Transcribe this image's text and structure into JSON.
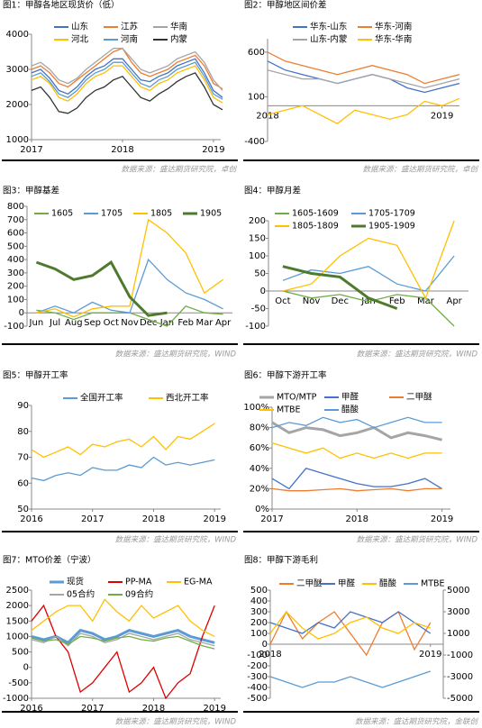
{
  "chart_data": [
    {
      "type": "line",
      "title": "图1：甲醇各地区现货价（低）",
      "source": "数据来源：盛达期货研究院，卓创",
      "x": [
        2017.0,
        2017.1,
        2017.2,
        2017.3,
        2017.4,
        2017.5,
        2017.6,
        2017.7,
        2017.8,
        2017.9,
        2018.0,
        2018.1,
        2018.2,
        2018.3,
        2018.4,
        2018.5,
        2018.6,
        2018.7,
        2018.8,
        2018.9,
        2019.0,
        2019.1
      ],
      "xlim": [
        2017,
        2019.08
      ],
      "xticks": [
        2017,
        2018,
        2019
      ],
      "ylim": [
        1000,
        4000
      ],
      "yticks": [
        1000,
        2000,
        3000,
        4000
      ],
      "series": [
        {
          "name": "山东",
          "color": "#4472c4",
          "values": [
            2900,
            3000,
            2750,
            2400,
            2300,
            2500,
            2800,
            3000,
            3100,
            3300,
            3300,
            3000,
            2700,
            2650,
            2800,
            2900,
            3100,
            3200,
            3300,
            2900,
            2400,
            2200
          ]
        },
        {
          "name": "江苏",
          "color": "#ed7d31",
          "values": [
            3000,
            3100,
            2900,
            2600,
            2500,
            2700,
            2900,
            3100,
            3300,
            3500,
            3600,
            3200,
            2900,
            2800,
            2900,
            3000,
            3200,
            3300,
            3400,
            3100,
            2600,
            2450
          ]
        },
        {
          "name": "华南",
          "color": "#a5a5a5",
          "values": [
            3100,
            3200,
            3000,
            2700,
            2600,
            2750,
            3000,
            3200,
            3400,
            3600,
            3600,
            3300,
            3000,
            2900,
            3000,
            3100,
            3300,
            3400,
            3500,
            3200,
            2700,
            2400
          ]
        },
        {
          "name": "河北",
          "color": "#ffc000",
          "values": [
            2700,
            2800,
            2600,
            2200,
            2100,
            2300,
            2600,
            2800,
            2900,
            3100,
            3100,
            2800,
            2500,
            2400,
            2600,
            2700,
            2900,
            3000,
            3100,
            2700,
            2200,
            2050
          ]
        },
        {
          "name": "河南",
          "color": "#5b9bd5",
          "values": [
            2800,
            2900,
            2650,
            2300,
            2200,
            2400,
            2700,
            2900,
            3000,
            3200,
            3200,
            2900,
            2600,
            2500,
            2700,
            2800,
            3000,
            3100,
            3200,
            2800,
            2300,
            2150
          ]
        },
        {
          "name": "内蒙",
          "color": "#333333",
          "values": [
            2400,
            2500,
            2200,
            1800,
            1750,
            1900,
            2200,
            2400,
            2500,
            2700,
            2800,
            2500,
            2200,
            2100,
            2300,
            2450,
            2650,
            2800,
            2900,
            2500,
            2000,
            1850
          ]
        }
      ]
    },
    {
      "type": "line",
      "title": "图2：甲醇地区间价差",
      "source": "数据来源：盛达期货研究院，卓创",
      "x": [
        2018.0,
        2018.1,
        2018.2,
        2018.3,
        2018.4,
        2018.5,
        2018.6,
        2018.7,
        2018.8,
        2018.9,
        2019.0,
        2019.1
      ],
      "xlim": [
        2018,
        2019.1
      ],
      "xticks": [
        2018,
        2019
      ],
      "ylim": [
        -400,
        750
      ],
      "yticks": [
        -400,
        100,
        600
      ],
      "series": [
        {
          "name": "华东-山东",
          "color": "#4472c4",
          "values": [
            500,
            400,
            350,
            300,
            250,
            300,
            350,
            300,
            200,
            150,
            200,
            250
          ]
        },
        {
          "name": "华东-河南",
          "color": "#ed7d31",
          "values": [
            600,
            500,
            450,
            400,
            350,
            400,
            450,
            400,
            350,
            250,
            300,
            350
          ]
        },
        {
          "name": "山东-内蒙",
          "color": "#a5a5a5",
          "values": [
            400,
            350,
            300,
            300,
            250,
            300,
            350,
            300,
            250,
            200,
            250,
            300
          ]
        },
        {
          "name": "华东-华南",
          "color": "#ffc000",
          "values": [
            -100,
            -50,
            0,
            -100,
            -200,
            -50,
            -100,
            -150,
            -100,
            50,
            0,
            80
          ]
        }
      ]
    },
    {
      "type": "line",
      "title": "图3：甲醇基差",
      "source": "数据来源：盛达期货研究院，WIND",
      "categories": [
        "Jun",
        "Jul",
        "Aug",
        "Sep",
        "Oct",
        "Nov",
        "Dec",
        "Jan",
        "Feb",
        "Mar",
        "Apr"
      ],
      "ylim": [
        -100,
        800
      ],
      "yticks": [
        -100,
        0,
        100,
        200,
        300,
        400,
        500,
        600,
        700,
        800
      ],
      "series": [
        {
          "name": "1605",
          "color": "#70ad47",
          "values": [
            20,
            0,
            -50,
            0,
            0,
            0,
            -50,
            -100,
            50,
            0,
            -10
          ]
        },
        {
          "name": "1705",
          "color": "#5b9bd5",
          "values": [
            0,
            50,
            0,
            80,
            20,
            0,
            400,
            250,
            150,
            100,
            30
          ]
        },
        {
          "name": "1805",
          "color": "#ffc000",
          "values": [
            0,
            30,
            -30,
            30,
            50,
            50,
            700,
            600,
            450,
            150,
            250
          ]
        },
        {
          "name": "1905",
          "color": "#4e7a2e",
          "values": [
            380,
            330,
            250,
            280,
            380,
            120,
            -20,
            0,
            null,
            null,
            null
          ]
        }
      ]
    },
    {
      "type": "line",
      "title": "图4：甲醇月差",
      "source": "数据来源：盛达期货研究院，WIND",
      "categories": [
        "Oct",
        "Nov",
        "Dec",
        "Jan",
        "Feb",
        "Mar",
        "Apr"
      ],
      "ylim": [
        -100,
        200
      ],
      "yticks": [
        -100,
        -50,
        0,
        50,
        100,
        150,
        200
      ],
      "series": [
        {
          "name": "1605-1609",
          "color": "#70ad47",
          "values": [
            0,
            -20,
            -10,
            -30,
            -10,
            -20,
            -100
          ]
        },
        {
          "name": "1705-1709",
          "color": "#5b9bd5",
          "values": [
            30,
            60,
            50,
            70,
            20,
            0,
            100
          ]
        },
        {
          "name": "1805-1809",
          "color": "#ffc000",
          "values": [
            0,
            20,
            100,
            150,
            130,
            -20,
            200
          ]
        },
        {
          "name": "1905-1909",
          "color": "#4e7a2e",
          "values": [
            70,
            50,
            40,
            -20,
            -50,
            null,
            null
          ]
        }
      ]
    },
    {
      "type": "line",
      "title": "图5：甲醇开工率",
      "source": "数据来源：盛达期货研究院，WIND",
      "x": [
        2016.0,
        2016.2,
        2016.4,
        2016.6,
        2016.8,
        2017.0,
        2017.2,
        2017.4,
        2017.6,
        2017.8,
        2018.0,
        2018.2,
        2018.4,
        2018.6,
        2018.8,
        2019.0
      ],
      "xlim": [
        2016,
        2019.1
      ],
      "xticks": [
        2016,
        2017,
        2018,
        2019
      ],
      "ylim": [
        50,
        90
      ],
      "yticks": [
        50,
        60,
        70,
        80,
        90
      ],
      "series": [
        {
          "name": "全国开工率",
          "color": "#5b9bd5",
          "values": [
            62,
            61,
            63,
            64,
            63,
            66,
            65,
            65,
            67,
            66,
            70,
            67,
            68,
            67,
            68,
            69
          ]
        },
        {
          "name": "西北开工率",
          "color": "#ffc000",
          "values": [
            73,
            70,
            72,
            74,
            71,
            75,
            74,
            76,
            77,
            74,
            78,
            73,
            78,
            77,
            80,
            83
          ]
        }
      ]
    },
    {
      "type": "line",
      "title": "图6：甲醇下游开工率",
      "source": "数据来源：盛达期货研究院，WIND",
      "x": [
        2017.0,
        2017.2,
        2017.4,
        2017.6,
        2017.8,
        2018.0,
        2018.2,
        2018.4,
        2018.6,
        2018.8,
        2019.0
      ],
      "xlim": [
        2017,
        2019.1
      ],
      "xticks": [
        2017,
        2018,
        2019
      ],
      "ylim": [
        0,
        100
      ],
      "yticks": [
        {
          "value": 0,
          "label": "0%"
        },
        {
          "value": 20,
          "label": "20%"
        },
        {
          "value": 40,
          "label": "40%"
        },
        {
          "value": 60,
          "label": "60%"
        },
        {
          "value": 80,
          "label": "80%"
        },
        {
          "value": 100,
          "label": "100%"
        }
      ],
      "series": [
        {
          "name": "MTO/MTP",
          "color": "#a5a5a5",
          "values": [
            85,
            75,
            80,
            78,
            72,
            75,
            80,
            70,
            75,
            72,
            68
          ]
        },
        {
          "name": "甲醛",
          "color": "#4472c4",
          "values": [
            30,
            20,
            40,
            35,
            30,
            25,
            22,
            22,
            25,
            30,
            20
          ]
        },
        {
          "name": "二甲醚",
          "color": "#ed7d31",
          "values": [
            20,
            18,
            18,
            19,
            20,
            18,
            19,
            20,
            18,
            20,
            20
          ]
        },
        {
          "name": "MTBE",
          "color": "#ffc000",
          "values": [
            65,
            60,
            55,
            60,
            50,
            55,
            50,
            55,
            50,
            55,
            55
          ]
        },
        {
          "name": "醋酸",
          "color": "#5b9bd5",
          "values": [
            80,
            85,
            82,
            90,
            85,
            88,
            80,
            85,
            90,
            85,
            85
          ]
        }
      ]
    },
    {
      "type": "line",
      "title": "图7：MTO价差（宁波）",
      "source": "数据来源：盛达期货研究院，WIND",
      "x": [
        2016.0,
        2016.2,
        2016.4,
        2016.6,
        2016.8,
        2017.0,
        2017.2,
        2017.4,
        2017.6,
        2017.8,
        2018.0,
        2018.2,
        2018.4,
        2018.6,
        2018.8,
        2019.0
      ],
      "xlim": [
        2016,
        2019.1
      ],
      "xticks": [
        2016,
        2017,
        2018,
        2019
      ],
      "ylim": [
        -1000,
        2500
      ],
      "yticks": [
        -1000,
        -500,
        0,
        500,
        1000,
        1500,
        2000,
        2500
      ],
      "series": [
        {
          "name": "现货",
          "color": "#5b9bd5",
          "values": [
            1000,
            900,
            1000,
            800,
            1200,
            1100,
            900,
            1000,
            1200,
            1100,
            1000,
            1100,
            1200,
            1000,
            900,
            800
          ]
        },
        {
          "name": "PP-MA",
          "color": "#e00000",
          "values": [
            1500,
            2000,
            1000,
            500,
            -800,
            -500,
            0,
            500,
            -800,
            -500,
            0,
            -1000,
            -500,
            -200,
            1000,
            2000
          ]
        },
        {
          "name": "EG-MA",
          "color": "#ffc000",
          "values": [
            1200,
            1500,
            1800,
            2000,
            2000,
            1500,
            2200,
            1800,
            1500,
            2000,
            1600,
            1800,
            2000,
            1500,
            1200,
            1000
          ]
        },
        {
          "name": "05合约",
          "color": "#a5a5a5",
          "values": [
            900,
            800,
            1000,
            700,
            1100,
            1000,
            800,
            900,
            1100,
            1000,
            900,
            1000,
            1100,
            900,
            800,
            700
          ]
        },
        {
          "name": "09合约",
          "color": "#70ad47",
          "values": [
            950,
            850,
            900,
            750,
            1000,
            950,
            850,
            950,
            1000,
            900,
            850,
            950,
            1000,
            850,
            700,
            600
          ]
        }
      ]
    },
    {
      "type": "line",
      "title": "图8：甲醇下游毛利",
      "source": "数据来源：盛达期货研究院，金联创",
      "x": [
        2018.0,
        2018.1,
        2018.2,
        2018.3,
        2018.4,
        2018.5,
        2018.6,
        2018.7,
        2018.8,
        2018.9,
        2019.0
      ],
      "xlim": [
        2018,
        2019.08
      ],
      "xticks": [
        2018,
        2019
      ],
      "ylim": [
        -500,
        500
      ],
      "yticks": [
        -500,
        -400,
        -300,
        -200,
        -100,
        0,
        100,
        200,
        300,
        400,
        500
      ],
      "y2lim": [
        -5000,
        5000
      ],
      "y2ticks": [
        -5000,
        -3000,
        -1000,
        1000,
        3000,
        5000
      ],
      "series": [
        {
          "name": "二甲醚",
          "color": "#ed7d31",
          "values": [
            0,
            300,
            50,
            200,
            300,
            100,
            -100,
            200,
            300,
            -50,
            200
          ]
        },
        {
          "name": "甲醛",
          "color": "#4472c4",
          "values": [
            200,
            150,
            100,
            200,
            150,
            300,
            250,
            200,
            300,
            200,
            100
          ]
        },
        {
          "name": "醋酸",
          "color": "#ffc000",
          "values": [
            100,
            300,
            150,
            50,
            100,
            200,
            250,
            150,
            100,
            200,
            150
          ]
        },
        {
          "name": "MTBE",
          "color": "#5b9bd5",
          "axis": "y2",
          "values": [
            -3000,
            -3500,
            -4000,
            -3500,
            -3500,
            -3000,
            -3500,
            -4000,
            -3500,
            -3000,
            -2500
          ]
        }
      ]
    }
  ]
}
